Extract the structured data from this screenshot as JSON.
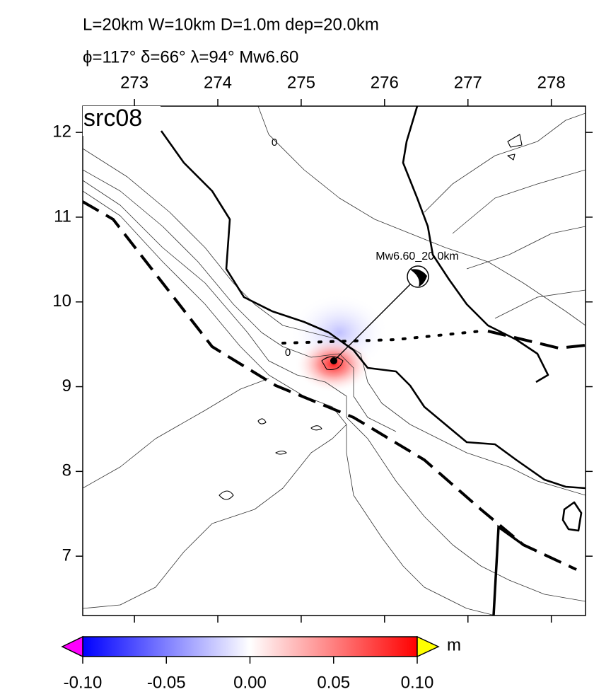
{
  "map": {
    "title_lines": [
      "L=20km W=10km D=1.0m dep=20.0km",
      "ϕ=117° δ=66° λ=94° Mw6.60"
    ],
    "panel_label": "src08",
    "event_label": "Mw6.60_20.0km",
    "contour_labels": [
      "0",
      "0"
    ],
    "xlim": [
      272.38,
      278.41
    ],
    "xticks": [
      273,
      274,
      275,
      276,
      277,
      278
    ],
    "ylim": [
      6.3,
      12.31
    ],
    "yticks": [
      7,
      8,
      9,
      10,
      11,
      12
    ],
    "colorbar": {
      "lim": [
        -0.1,
        0.1
      ],
      "ticks": [
        {
          "value": -0.1,
          "label": "-0.10"
        },
        {
          "value": -0.05,
          "label": "-0.05"
        },
        {
          "value": 0,
          "label": "0.00"
        },
        {
          "value": 0.05,
          "label": "0.05"
        },
        {
          "value": 0.1,
          "label": "0.10"
        }
      ],
      "unit": "m",
      "colors": [
        "#0000ff",
        "#ffffff",
        "#ff0000"
      ],
      "under_color": "#ff00ff",
      "over_color": "#ffff00"
    }
  }
}
